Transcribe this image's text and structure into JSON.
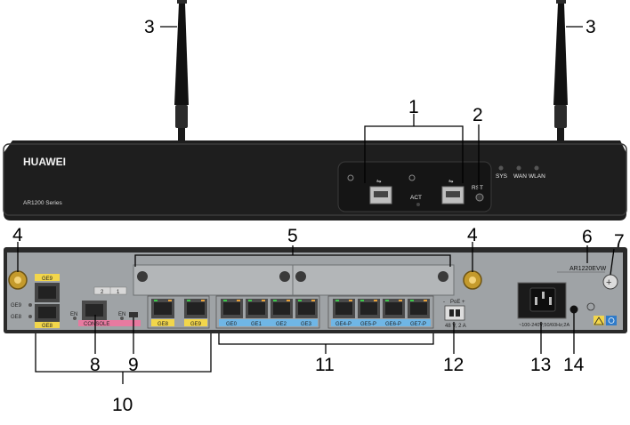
{
  "front_panel": {
    "brand": "HUAWEI",
    "model_series": "AR1200 Series",
    "led_labels": [
      "SYS",
      "WAN",
      "WLAN"
    ],
    "act_label": "ACT",
    "rst_label": "RST"
  },
  "rear_panel": {
    "model_name": "AR1220EVW",
    "combo_labels": [
      "GE9",
      "GE8"
    ],
    "combo_side_labels": [
      "GE9",
      "GE8"
    ],
    "slot_numbers": [
      "2",
      "1"
    ],
    "en_label": "EN",
    "console_label": "CONSOLE",
    "ge_ports_left": [
      "GE8",
      "GE9"
    ],
    "ge_ports_center": [
      "GE0",
      "GE1",
      "GE2",
      "GE3",
      "GE4-P",
      "GE5-P",
      "GE6-P",
      "GE7-P"
    ],
    "poe_label": "PoE",
    "power_spec": "48 V, 2 A",
    "ac_spec": "~100-240V;50/60Hz;2A"
  },
  "callouts": [
    "1",
    "2",
    "3",
    "3",
    "4",
    "4",
    "5",
    "6",
    "7",
    "8",
    "9",
    "10",
    "11",
    "12",
    "13",
    "14"
  ],
  "colors": {
    "chassis": "#1e1e1e",
    "rear_plate": "#9fa3a6",
    "label_yellow": "#f2d64b",
    "label_blue": "#6fb6e6",
    "label_pink": "#e77aa0",
    "port_green": "#3cc84a",
    "port_orange": "#e9a23a"
  }
}
